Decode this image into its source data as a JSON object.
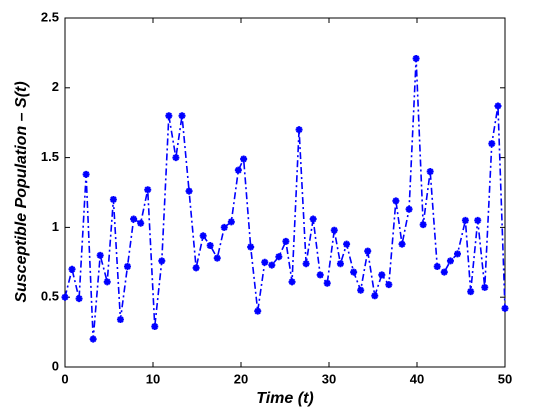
{
  "chart_data": {
    "type": "line",
    "xlabel": "Time (t)",
    "ylabel": "Susceptible Population – S(t)",
    "x": [
      0,
      0.8,
      1.6,
      2.4,
      3.2,
      4,
      4.8,
      5.5,
      6.3,
      7.1,
      7.8,
      8.6,
      9.4,
      10.2,
      11,
      11.8,
      12.6,
      13.3,
      14.1,
      14.9,
      15.7,
      16.5,
      17.3,
      18.1,
      18.9,
      19.7,
      20.3,
      21.1,
      21.9,
      22.7,
      23.5,
      24.3,
      25.1,
      25.8,
      26.6,
      27.4,
      28.2,
      29,
      29.8,
      30.6,
      31.3,
      32,
      32.8,
      33.6,
      34.4,
      35.2,
      36,
      36.8,
      37.6,
      38.3,
      39.1,
      39.9,
      40.7,
      41.5,
      42.3,
      43.1,
      43.8,
      44.6,
      45.5,
      46.1,
      46.9,
      47.7,
      48.5,
      49.2,
      50
    ],
    "series": [
      {
        "name": "S(t)",
        "color": "#0000ff",
        "values": [
          0.5,
          0.7,
          0.49,
          1.38,
          0.2,
          0.8,
          0.61,
          1.2,
          0.34,
          0.72,
          1.06,
          1.03,
          1.27,
          0.29,
          0.76,
          1.8,
          1.5,
          1.8,
          1.26,
          0.71,
          0.94,
          0.87,
          0.78,
          1.0,
          1.04,
          1.41,
          1.49,
          0.86,
          0.4,
          0.75,
          0.73,
          0.79,
          0.9,
          0.61,
          1.7,
          0.74,
          1.06,
          0.66,
          0.6,
          0.98,
          0.74,
          0.88,
          0.68,
          0.55,
          0.83,
          0.51,
          0.66,
          0.59,
          1.19,
          0.88,
          1.13,
          2.21,
          1.02,
          1.4,
          0.72,
          0.68,
          0.76,
          0.81,
          1.05,
          0.54,
          1.05,
          0.57,
          1.6,
          1.87,
          0.42
        ]
      }
    ],
    "xlim": [
      0,
      50
    ],
    "xticks": [
      0,
      10,
      20,
      30,
      40,
      50
    ],
    "ylim": [
      0,
      2.5
    ],
    "yticks": [
      0,
      0.5,
      1,
      1.5,
      2,
      2.5
    ]
  }
}
